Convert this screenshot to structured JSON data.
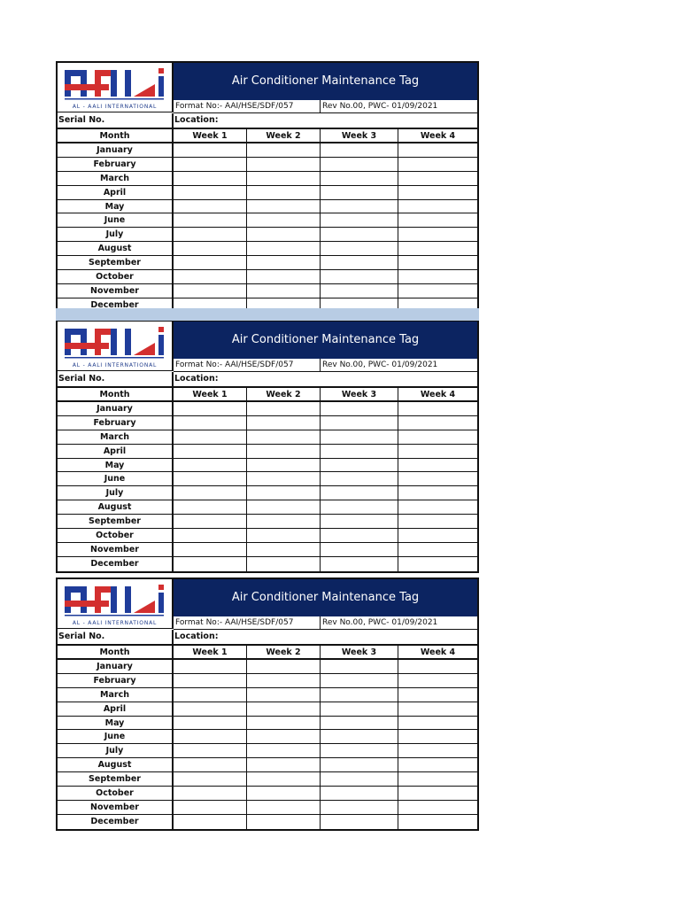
{
  "company": {
    "name": "AL - AALI INTERNATIONAL",
    "logo_text": "AALI",
    "colors": {
      "blue": "#1f3c9a",
      "red": "#d32f2f"
    }
  },
  "header_color": "#0c2461",
  "separator_color": "#b8cce4",
  "form": {
    "title": "Air Conditioner Maintenance Tag",
    "format_no": "Format No:- AAI/HSE/SDF/057",
    "rev_no": "Rev No.00, PWC- 01/09/2021",
    "serial_label": "Serial No.",
    "location_label": "Location:",
    "columns": [
      "Month",
      "Week 1",
      "Week 2",
      "Week 3",
      "Week 4"
    ],
    "months": [
      "January",
      "February",
      "March",
      "April",
      "May",
      "June",
      "July",
      "August",
      "September",
      "October",
      "November",
      "December"
    ]
  },
  "tag_count": 3
}
